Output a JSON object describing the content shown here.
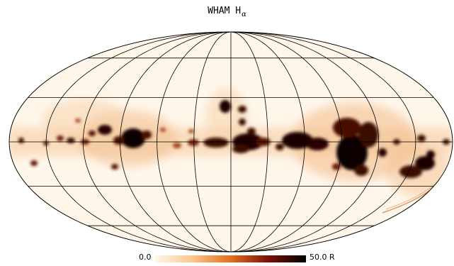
{
  "title": {
    "main": "WHAM H",
    "subscript": "α"
  },
  "colorbar": {
    "min_label": "0.0",
    "max_label": "50.0 R",
    "colors": [
      "#fff8ee",
      "#fbc68c",
      "#e37020",
      "#7a1208",
      "#000000"
    ]
  },
  "map": {
    "projection": "mollweide",
    "background_color": "#fff6ea",
    "grid_color": "#000000"
  }
}
